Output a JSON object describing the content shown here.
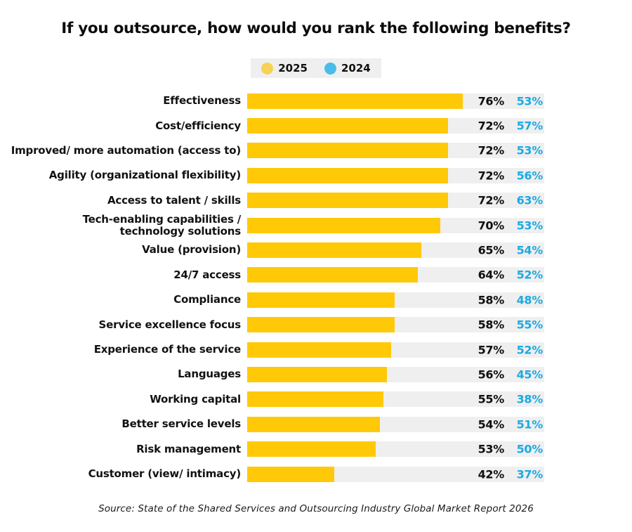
{
  "title": "If you outsource, how would you rank the following benefits?",
  "legend": {
    "items": [
      {
        "label": "2025",
        "color": "#F7D254"
      },
      {
        "label": "2024",
        "color": "#4ABCE8"
      }
    ],
    "background": "#efefef"
  },
  "source_note": "Source: State of the Shared Services and Outsourcing Industry Global Market Report 2026",
  "colors": {
    "bar_fill": "#FFC907",
    "bar_track": "#efefef",
    "value_2025_text": "#0f0f0f",
    "value_2024_text": "#1BAAE2"
  },
  "chart_data": {
    "type": "bar",
    "orientation": "horizontal",
    "title": "If you outsource, how would you rank the following benefits?",
    "legend_position": "top",
    "grid": false,
    "value_suffix": "%",
    "categories": [
      "Effectiveness",
      "Cost/efficiency",
      "Improved/ more automation (access to)",
      "Agility (organizational flexibility)",
      "Access to talent / skills",
      "Tech-enabling capabilities /\ntechnology solutions",
      "Value (provision)",
      "24/7 access",
      "Compliance",
      "Service excellence focus",
      "Experience of the service",
      "Languages",
      "Working capital",
      "Better service levels",
      "Risk management",
      "Customer (view/ intimacy)"
    ],
    "series": [
      {
        "name": "2025",
        "color": "#FFC907",
        "values": [
          76,
          72,
          72,
          72,
          72,
          70,
          65,
          64,
          58,
          58,
          57,
          56,
          55,
          54,
          53,
          42
        ]
      },
      {
        "name": "2024",
        "color": "#1BAAE2",
        "values": [
          53,
          57,
          53,
          56,
          63,
          53,
          54,
          52,
          48,
          55,
          52,
          45,
          38,
          51,
          50,
          37
        ]
      }
    ]
  }
}
